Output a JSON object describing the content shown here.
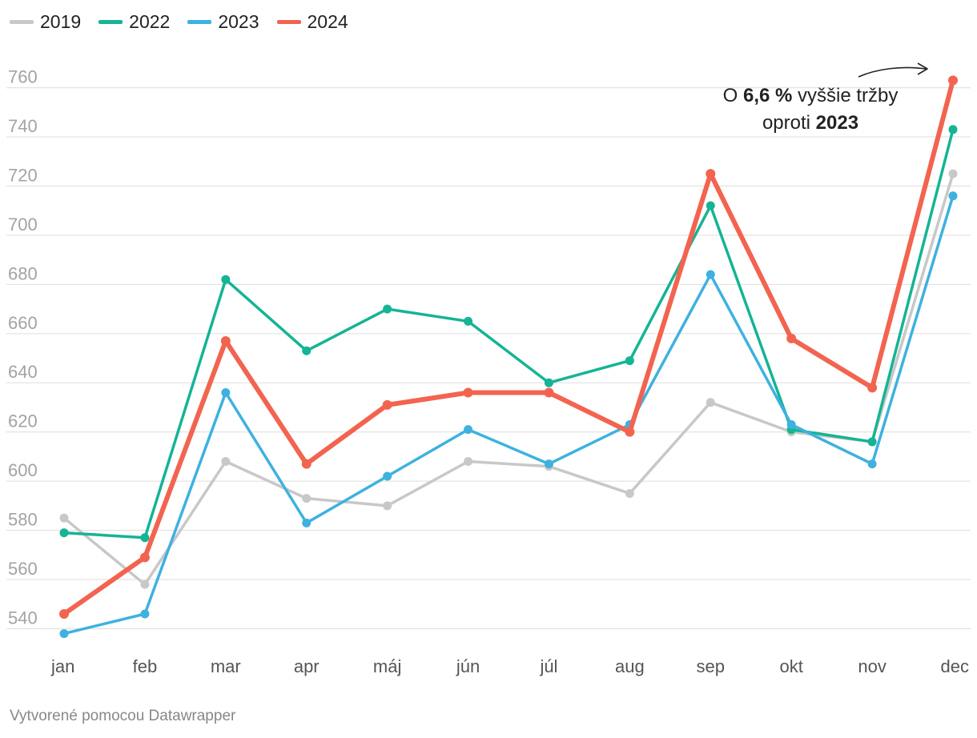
{
  "chart_data": {
    "type": "line",
    "categories": [
      "jan",
      "feb",
      "mar",
      "apr",
      "máj",
      "jún",
      "júl",
      "aug",
      "sep",
      "okt",
      "nov",
      "dec"
    ],
    "series": [
      {
        "name": "2019",
        "color": "#c8c8c8",
        "values": [
          585,
          558,
          608,
          593,
          590,
          608,
          606,
          595,
          632,
          620,
          616,
          725
        ]
      },
      {
        "name": "2022",
        "color": "#15b494",
        "values": [
          579,
          577,
          682,
          653,
          670,
          665,
          640,
          649,
          712,
          621,
          616,
          743
        ]
      },
      {
        "name": "2023",
        "color": "#3eb1e0",
        "values": [
          538,
          546,
          636,
          583,
          602,
          621,
          607,
          623,
          684,
          623,
          607,
          716
        ]
      },
      {
        "name": "2024",
        "color": "#f26450",
        "values": [
          546,
          569,
          657,
          607,
          631,
          636,
          636,
          620,
          725,
          658,
          638,
          763
        ]
      }
    ],
    "yticks": [
      540,
      560,
      580,
      600,
      620,
      640,
      660,
      680,
      700,
      720,
      740,
      760
    ],
    "ylim": [
      532,
      768
    ],
    "annotation": {
      "line1": [
        "O ",
        "6,6 %",
        " vyššie tržby"
      ],
      "line2": [
        "oproti ",
        "2023"
      ]
    }
  },
  "footer": {
    "credit": "Vytvorené pomocou Datawrapper"
  }
}
